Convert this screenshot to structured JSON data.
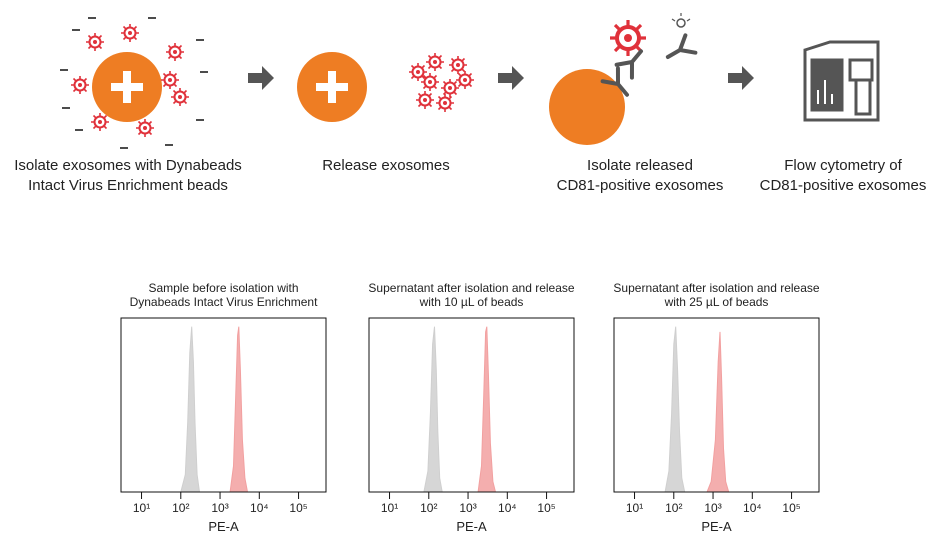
{
  "steps": [
    {
      "label": [
        "Isolate exosomes with Dynabeads",
        "Intact Virus Enrichment beads"
      ]
    },
    {
      "label": [
        "Release exosomes"
      ]
    },
    {
      "label": [
        "Isolate released",
        "CD81-positive exosomes"
      ]
    },
    {
      "label": [
        "Flow cytometry of",
        "CD81-positive exosomes"
      ]
    }
  ],
  "chart_data": [
    {
      "type": "area",
      "title": [
        "Sample before isolation with",
        "Dynabeads Intact Virus Enrichment"
      ],
      "x_label": "PE-A",
      "xscale": "log",
      "x": [
        100,
        130,
        150,
        170,
        190,
        210,
        230,
        260,
        300,
        1800,
        2200,
        2500,
        2800,
        3000,
        3300,
        3700,
        4300,
        5000
      ],
      "series": [
        {
          "color": "#cfcfcf",
          "values": [
            0,
            10,
            40,
            80,
            95,
            75,
            40,
            10,
            0,
            0,
            0,
            0,
            0,
            0,
            0,
            0,
            0,
            0
          ]
        },
        {
          "color": "#f2a0a0",
          "values": [
            0,
            0,
            0,
            0,
            0,
            0,
            0,
            0,
            0,
            0,
            15,
            55,
            90,
            95,
            70,
            30,
            8,
            0
          ]
        }
      ],
      "xlim": [
        3,
        500000
      ],
      "ylim": [
        0,
        100
      ],
      "xticks": [
        {
          "value": 10,
          "label": "10¹"
        },
        {
          "value": 100,
          "label": "10²"
        },
        {
          "value": 1000,
          "label": "10³"
        },
        {
          "value": 10000,
          "label": "10⁴"
        },
        {
          "value": 100000,
          "label": "10⁵"
        }
      ]
    },
    {
      "type": "area",
      "title": [
        "Supernatant after isolation and release",
        "with 10 µL of beads"
      ],
      "x_label": "PE-A",
      "xscale": "log",
      "x": [
        75,
        95,
        110,
        125,
        140,
        155,
        170,
        190,
        220,
        1800,
        2200,
        2500,
        2800,
        3000,
        3300,
        3700,
        4300,
        5000
      ],
      "series": [
        {
          "color": "#cfcfcf",
          "values": [
            0,
            12,
            45,
            85,
            95,
            70,
            35,
            8,
            0,
            0,
            0,
            0,
            0,
            0,
            0,
            0,
            0,
            0
          ]
        },
        {
          "color": "#f2a0a0",
          "values": [
            0,
            0,
            0,
            0,
            0,
            0,
            0,
            0,
            0,
            0,
            15,
            55,
            92,
            95,
            68,
            28,
            6,
            0
          ]
        }
      ],
      "xlim": [
        3,
        500000
      ],
      "ylim": [
        0,
        100
      ],
      "xticks": [
        {
          "value": 10,
          "label": "10¹"
        },
        {
          "value": 100,
          "label": "10²"
        },
        {
          "value": 1000,
          "label": "10³"
        },
        {
          "value": 10000,
          "label": "10⁴"
        },
        {
          "value": 100000,
          "label": "10⁵"
        }
      ]
    },
    {
      "type": "area",
      "title": [
        "Supernatant after isolation and release",
        "with 25 µL of beads"
      ],
      "x_label": "PE-A",
      "xscale": "log",
      "x": [
        60,
        75,
        88,
        100,
        112,
        125,
        140,
        160,
        190,
        700,
        900,
        1150,
        1350,
        1500,
        1650,
        1850,
        2100,
        2500
      ],
      "series": [
        {
          "color": "#cfcfcf",
          "values": [
            0,
            12,
            45,
            85,
            95,
            70,
            35,
            8,
            0,
            0,
            0,
            0,
            0,
            0,
            0,
            0,
            0,
            0
          ]
        },
        {
          "color": "#f2a0a0",
          "values": [
            0,
            0,
            0,
            0,
            0,
            0,
            0,
            0,
            0,
            0,
            6,
            30,
            75,
            92,
            65,
            25,
            6,
            0
          ]
        }
      ],
      "xlim": [
        3,
        500000
      ],
      "ylim": [
        0,
        100
      ],
      "xticks": [
        {
          "value": 10,
          "label": "10¹"
        },
        {
          "value": 100,
          "label": "10²"
        },
        {
          "value": 1000,
          "label": "10³"
        },
        {
          "value": 10000,
          "label": "10⁴"
        },
        {
          "value": 100000,
          "label": "10⁵"
        }
      ]
    }
  ]
}
